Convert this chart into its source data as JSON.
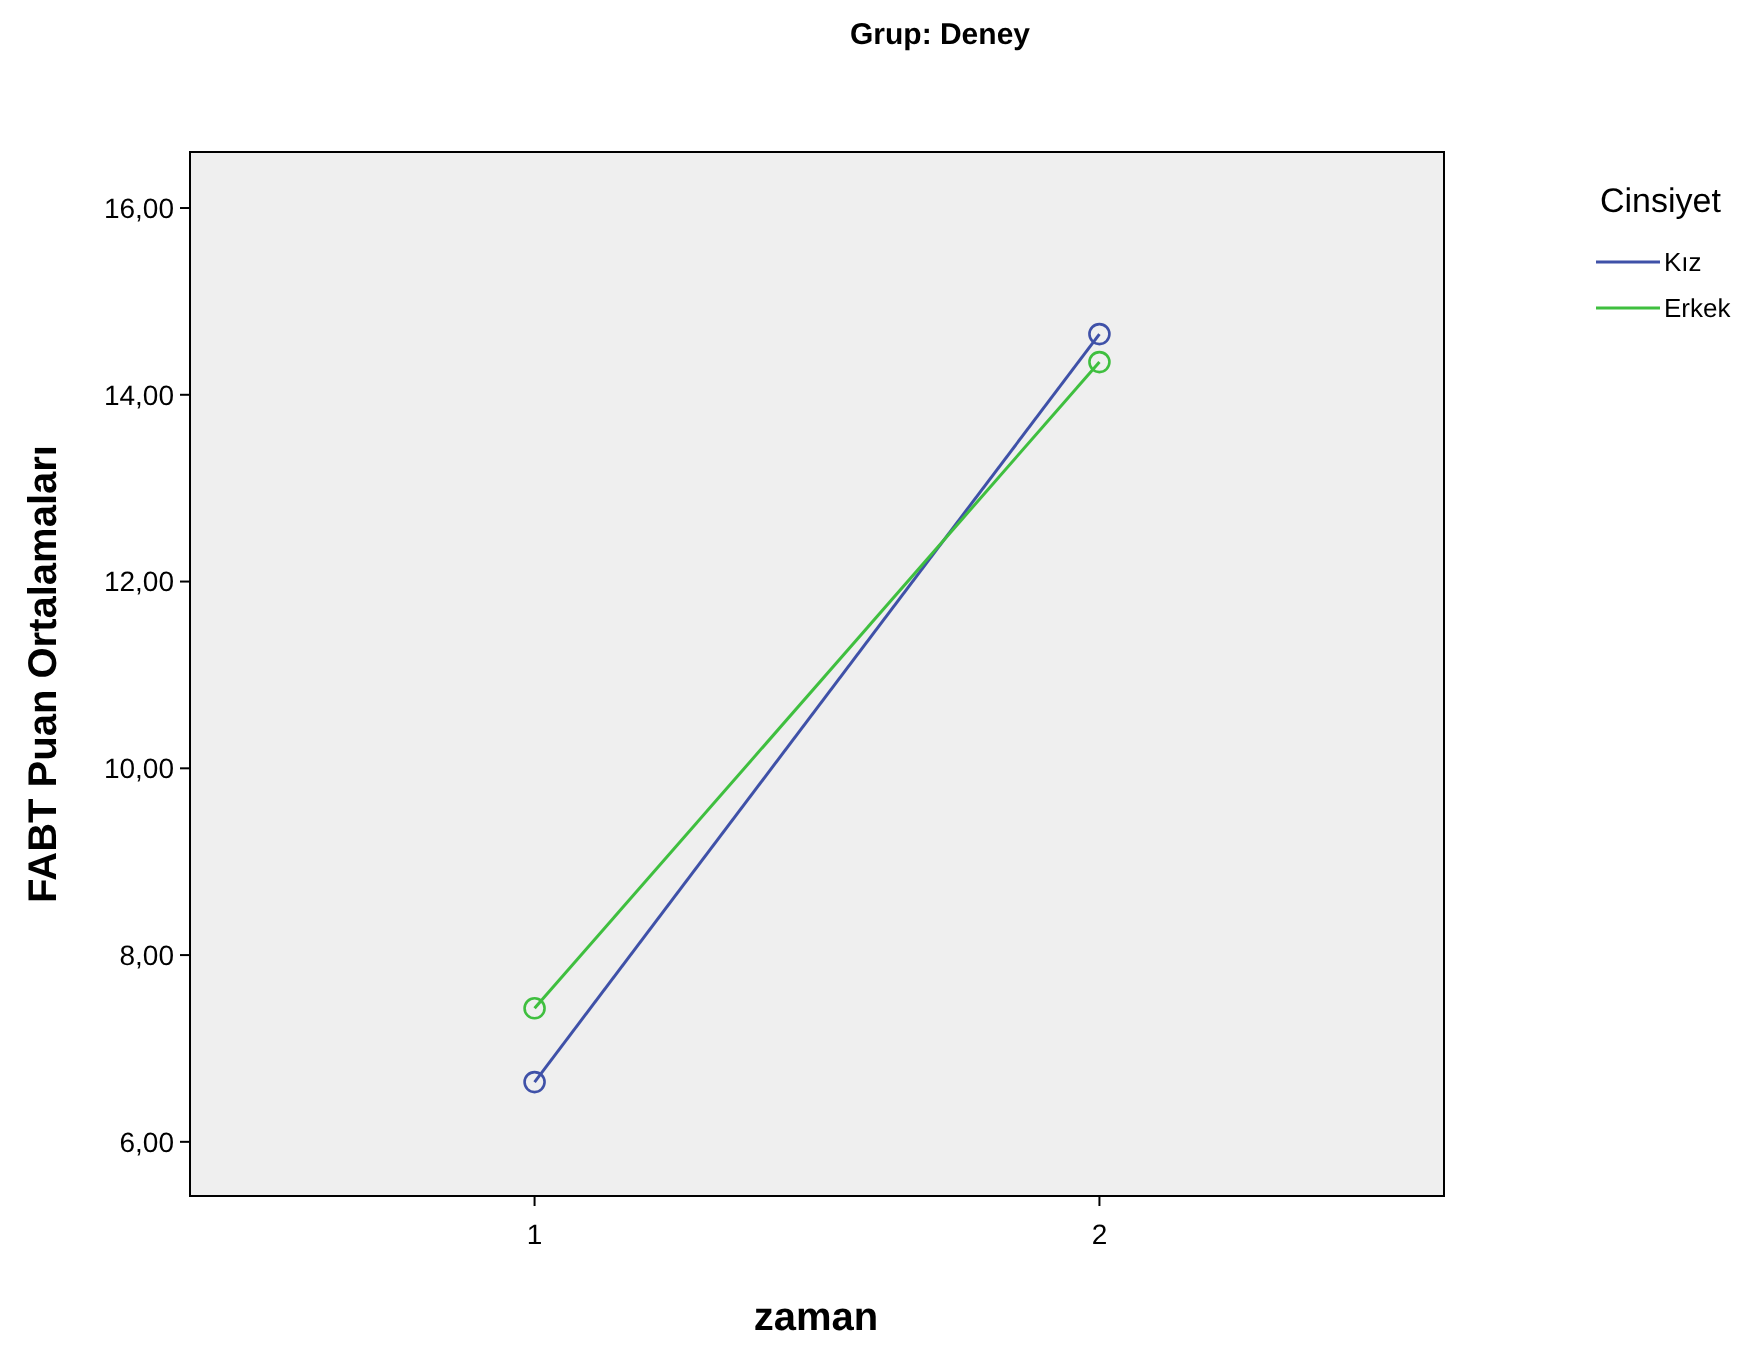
{
  "chart_data": {
    "type": "line",
    "title": "Grup: Deney",
    "xlabel": "zaman",
    "ylabel": "FABT Puan Ortalamaları",
    "legend_title": "Cinsiyet",
    "categories": [
      "1",
      "2"
    ],
    "series": [
      {
        "name": "Kız",
        "color": "#3f51a8",
        "values": [
          6.64,
          14.65
        ]
      },
      {
        "name": "Erkek",
        "color": "#3fbf3f",
        "values": [
          7.43,
          14.35
        ]
      }
    ],
    "ylim": [
      5.42,
      16.6
    ],
    "yticks": [
      {
        "value": 6,
        "label": "6,00"
      },
      {
        "value": 8,
        "label": "8,00"
      },
      {
        "value": 10,
        "label": "10,00"
      },
      {
        "value": 12,
        "label": "12,00"
      },
      {
        "value": 14,
        "label": "14,00"
      },
      {
        "value": 16,
        "label": "16,00"
      }
    ],
    "legend": "right",
    "marker": "circle",
    "line_style": "solid",
    "grid": false
  }
}
